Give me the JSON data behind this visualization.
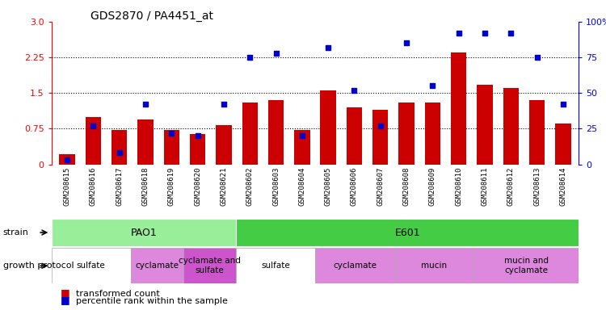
{
  "title": "GDS2870 / PA4451_at",
  "samples": [
    "GSM208615",
    "GSM208616",
    "GSM208617",
    "GSM208618",
    "GSM208619",
    "GSM208620",
    "GSM208621",
    "GSM208602",
    "GSM208603",
    "GSM208604",
    "GSM208605",
    "GSM208606",
    "GSM208607",
    "GSM208608",
    "GSM208609",
    "GSM208610",
    "GSM208611",
    "GSM208612",
    "GSM208613",
    "GSM208614"
  ],
  "transformed_count": [
    0.22,
    1.0,
    0.72,
    0.95,
    0.72,
    0.63,
    0.82,
    1.3,
    1.35,
    0.72,
    1.55,
    1.2,
    1.15,
    1.3,
    1.3,
    2.35,
    1.68,
    1.6,
    1.35,
    0.85
  ],
  "percentile_rank": [
    3,
    27,
    8,
    42,
    22,
    20,
    42,
    75,
    78,
    20,
    82,
    52,
    27,
    85,
    55,
    92,
    92,
    92,
    75,
    42
  ],
  "bar_color": "#cc0000",
  "scatter_color": "#0000cc",
  "ylim_left": [
    0,
    3.0
  ],
  "ylim_right": [
    0,
    100
  ],
  "yticks_left": [
    0,
    0.75,
    1.5,
    2.25,
    3.0
  ],
  "yticks_right": [
    0,
    25,
    50,
    75,
    100
  ],
  "ytick_labels_right": [
    "0",
    "25",
    "50",
    "75",
    "100%"
  ],
  "hlines": [
    0.75,
    1.5,
    2.25
  ],
  "strain_row": [
    {
      "label": "PAO1",
      "start": 0,
      "end": 7,
      "color": "#99ee99"
    },
    {
      "label": "E601",
      "start": 7,
      "end": 20,
      "color": "#44cc44"
    }
  ],
  "protocol_row": [
    {
      "label": "sulfate",
      "start": 0,
      "end": 3,
      "color": "#ffffff"
    },
    {
      "label": "cyclamate",
      "start": 3,
      "end": 5,
      "color": "#dd88dd"
    },
    {
      "label": "cyclamate and\nsulfate",
      "start": 5,
      "end": 7,
      "color": "#cc55cc"
    },
    {
      "label": "sulfate",
      "start": 7,
      "end": 10,
      "color": "#ffffff"
    },
    {
      "label": "cyclamate",
      "start": 10,
      "end": 13,
      "color": "#dd88dd"
    },
    {
      "label": "mucin",
      "start": 13,
      "end": 16,
      "color": "#dd88dd"
    },
    {
      "label": "mucin and\ncyclamate",
      "start": 16,
      "end": 20,
      "color": "#dd88dd"
    }
  ],
  "legend_items": [
    {
      "label": "transformed count",
      "color": "#cc0000"
    },
    {
      "label": "percentile rank within the sample",
      "color": "#0000cc"
    }
  ],
  "background_color": "#ffffff",
  "xticklabel_bg": "#cccccc"
}
